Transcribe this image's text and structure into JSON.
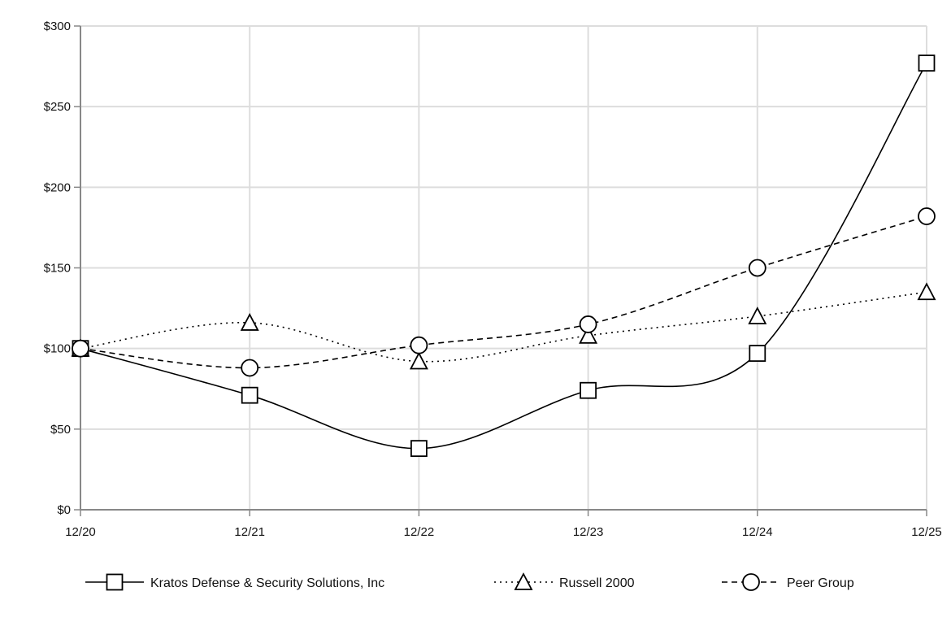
{
  "chart_data": {
    "type": "line",
    "title": "",
    "xlabel": "",
    "ylabel": "",
    "categories": [
      "12/20",
      "12/21",
      "12/22",
      "12/23",
      "12/24",
      "12/25"
    ],
    "ylim": [
      0,
      300
    ],
    "yticks": [
      0,
      50,
      100,
      150,
      200,
      250,
      300
    ],
    "ytick_labels": [
      "$0",
      "$50",
      "$100",
      "$150",
      "$200",
      "$250",
      "$300"
    ],
    "grid": true,
    "legend_position": "bottom",
    "series": [
      {
        "name": "Kratos Defense & Security Solutions, Inc",
        "marker": "square",
        "line_style": "solid",
        "values": [
          100,
          71,
          38,
          74,
          97,
          277
        ]
      },
      {
        "name": "Russell 2000",
        "marker": "triangle",
        "line_style": "dotted",
        "values": [
          100,
          116,
          92,
          108,
          120,
          135
        ]
      },
      {
        "name": "Peer Group",
        "marker": "circle",
        "line_style": "dashed",
        "values": [
          100,
          88,
          102,
          115,
          150,
          182
        ]
      }
    ],
    "colors": {
      "line": "#000000",
      "grid": "#dddddd",
      "axis": "#888888"
    }
  }
}
